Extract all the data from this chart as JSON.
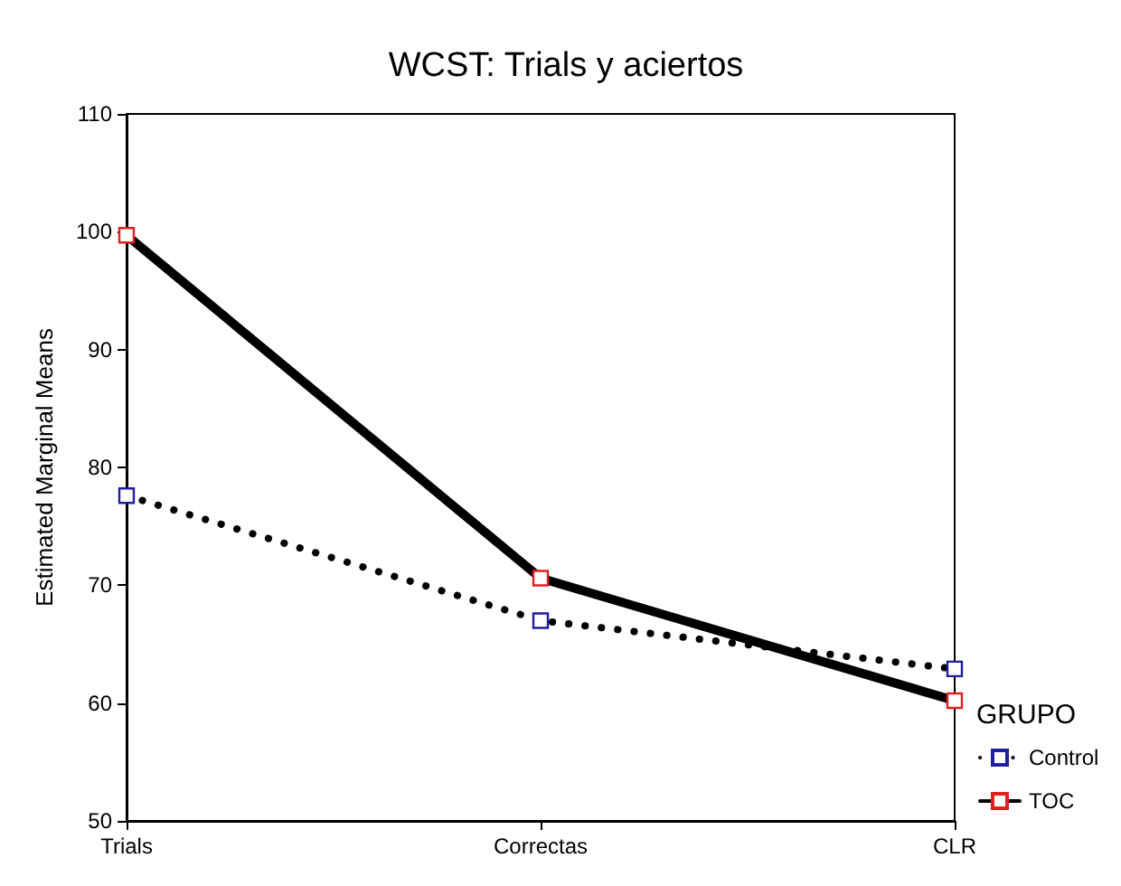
{
  "chart_data": {
    "type": "line",
    "title": "WCST: Trials y aciertos",
    "ylabel": "Estimated Marginal Means",
    "legend_title": "GRUPO",
    "categories": [
      "Trials",
      "Correctas",
      "CLR"
    ],
    "series": [
      {
        "name": "Control",
        "color": "#1f1f9f",
        "values": [
          77.6,
          67.0,
          62.9
        ],
        "line_style": "dotted"
      },
      {
        "name": "TOC",
        "color": "#e02020",
        "values": [
          99.7,
          70.6,
          60.2
        ],
        "line_style": "solid"
      }
    ],
    "ylim": [
      50,
      110
    ],
    "yticks": [
      50,
      60,
      70,
      80,
      90,
      100,
      110
    ],
    "grid": false,
    "legend": "right",
    "marker": "square"
  }
}
